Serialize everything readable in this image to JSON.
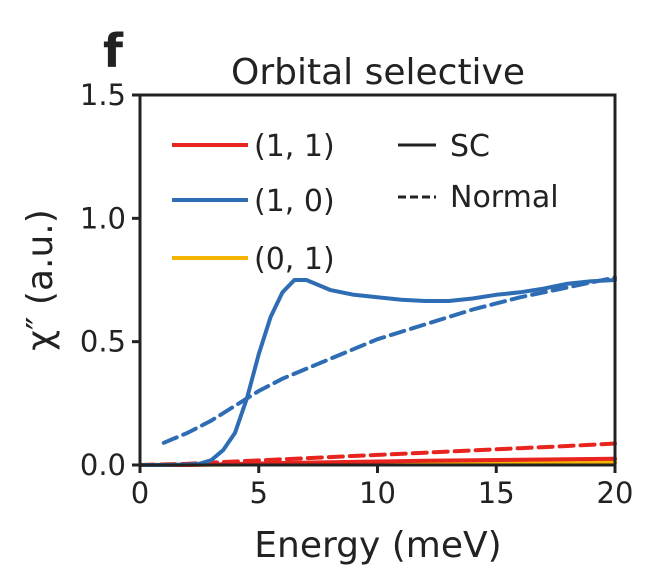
{
  "panel_label": "f",
  "legend_style": {
    "solid_label": "SC",
    "dashed_label": "Normal"
  },
  "chart_data": {
    "type": "line",
    "title": "Orbital selective",
    "xlabel": "Energy (meV)",
    "ylabel": "χ″ (a.u.)",
    "xlim": [
      0,
      20
    ],
    "ylim": [
      0,
      1.5
    ],
    "xticks": [
      0,
      5,
      10,
      15,
      20
    ],
    "xtick_labels": [
      "0",
      "5",
      "10",
      "15",
      "20"
    ],
    "yticks": [
      0,
      0.5,
      1.0,
      1.5
    ],
    "ytick_labels": [
      "0.0",
      "0.5",
      "1.0",
      "1.5"
    ],
    "grid": false,
    "legend_position": "top-left",
    "series": [
      {
        "name": "(1, 1)",
        "color": "#e8241e",
        "style": "solid",
        "x": [
          0,
          2,
          4,
          6,
          8,
          10,
          12,
          14,
          16,
          18,
          20
        ],
        "y": [
          0.0,
          0.0,
          0.004,
          0.008,
          0.011,
          0.014,
          0.017,
          0.019,
          0.021,
          0.023,
          0.025
        ]
      },
      {
        "name": "(1, 1)",
        "color": "#e8241e",
        "style": "dashed",
        "x": [
          0,
          2,
          4,
          6,
          8,
          10,
          12,
          14,
          16,
          18,
          20
        ],
        "y": [
          0.0,
          0.005,
          0.014,
          0.023,
          0.032,
          0.041,
          0.05,
          0.059,
          0.068,
          0.077,
          0.087
        ]
      },
      {
        "name": "(1, 0)",
        "color": "#2e6db4",
        "style": "solid",
        "x": [
          0,
          1,
          2,
          2.5,
          3,
          3.5,
          4,
          4.5,
          5,
          5.5,
          6,
          6.5,
          7,
          7.5,
          8,
          9,
          10,
          11,
          12,
          13,
          14,
          15,
          16,
          17,
          18,
          19,
          20
        ],
        "y": [
          0.0,
          0.0,
          0.002,
          0.005,
          0.02,
          0.06,
          0.13,
          0.27,
          0.45,
          0.6,
          0.7,
          0.75,
          0.75,
          0.73,
          0.71,
          0.69,
          0.68,
          0.67,
          0.665,
          0.665,
          0.675,
          0.69,
          0.7,
          0.715,
          0.735,
          0.745,
          0.75
        ]
      },
      {
        "name": "(1, 0)",
        "color": "#2e6db4",
        "style": "dashed",
        "x": [
          1,
          2,
          3,
          4,
          5,
          6,
          8,
          10,
          12,
          14,
          16,
          18,
          20
        ],
        "y": [
          0.09,
          0.13,
          0.18,
          0.24,
          0.3,
          0.35,
          0.43,
          0.51,
          0.57,
          0.63,
          0.68,
          0.72,
          0.76
        ]
      },
      {
        "name": "(0, 1)",
        "color": "#f4b400",
        "style": "solid",
        "x": [
          0,
          5,
          10,
          15,
          20
        ],
        "y": [
          0.0,
          0.002,
          0.004,
          0.006,
          0.008
        ]
      },
      {
        "name": "(0, 1)",
        "color": "#f4b400",
        "style": "dashed",
        "x": [
          0,
          5,
          10,
          15,
          20
        ],
        "y": [
          0.0,
          0.003,
          0.006,
          0.009,
          0.012
        ]
      }
    ]
  }
}
